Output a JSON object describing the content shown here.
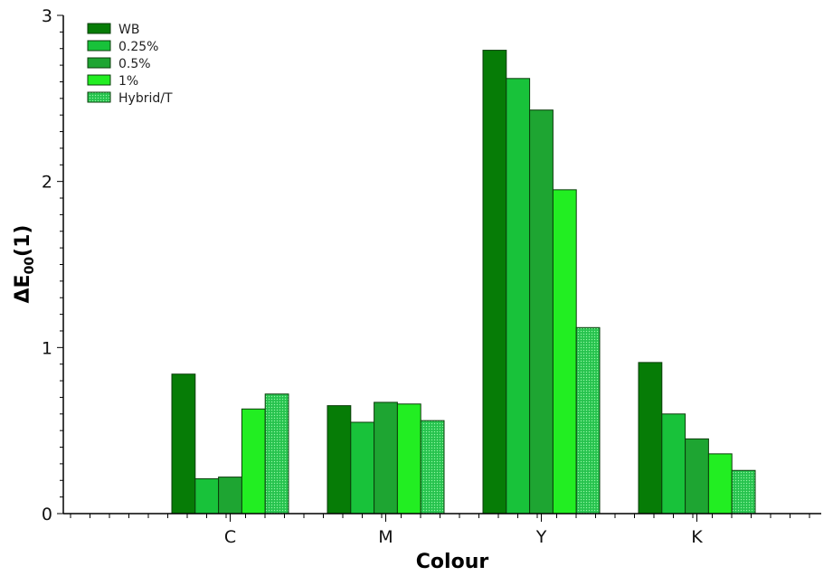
{
  "chart_data": {
    "type": "bar",
    "title": "",
    "xlabel": "Colour",
    "ylabel": {
      "main": "ΔE",
      "sub": "00",
      "suffix": "(1)"
    },
    "categories": [
      "C",
      "M",
      "Y",
      "K"
    ],
    "ylim": [
      0,
      3
    ],
    "yticks": [
      "0",
      "1",
      "2",
      "3"
    ],
    "grid": false,
    "legend_position": "top-left",
    "series": [
      {
        "name": "WB",
        "color": "#067C06",
        "pattern": "solid",
        "values": [
          0.84,
          0.65,
          2.79,
          0.91
        ]
      },
      {
        "name": "0.25%",
        "color": "#18C23A",
        "pattern": "solid",
        "values": [
          0.21,
          0.55,
          2.62,
          0.6
        ]
      },
      {
        "name": "0.5%",
        "color": "#1EA532",
        "pattern": "solid",
        "values": [
          0.22,
          0.67,
          2.43,
          0.45
        ]
      },
      {
        "name": "1%",
        "color": "#22EE22",
        "pattern": "solid",
        "values": [
          0.63,
          0.66,
          1.95,
          0.36
        ]
      },
      {
        "name": "Hybrid/T",
        "color": "#2ECC55",
        "pattern": "dotted",
        "values": [
          0.72,
          0.56,
          1.12,
          0.26
        ]
      }
    ]
  }
}
